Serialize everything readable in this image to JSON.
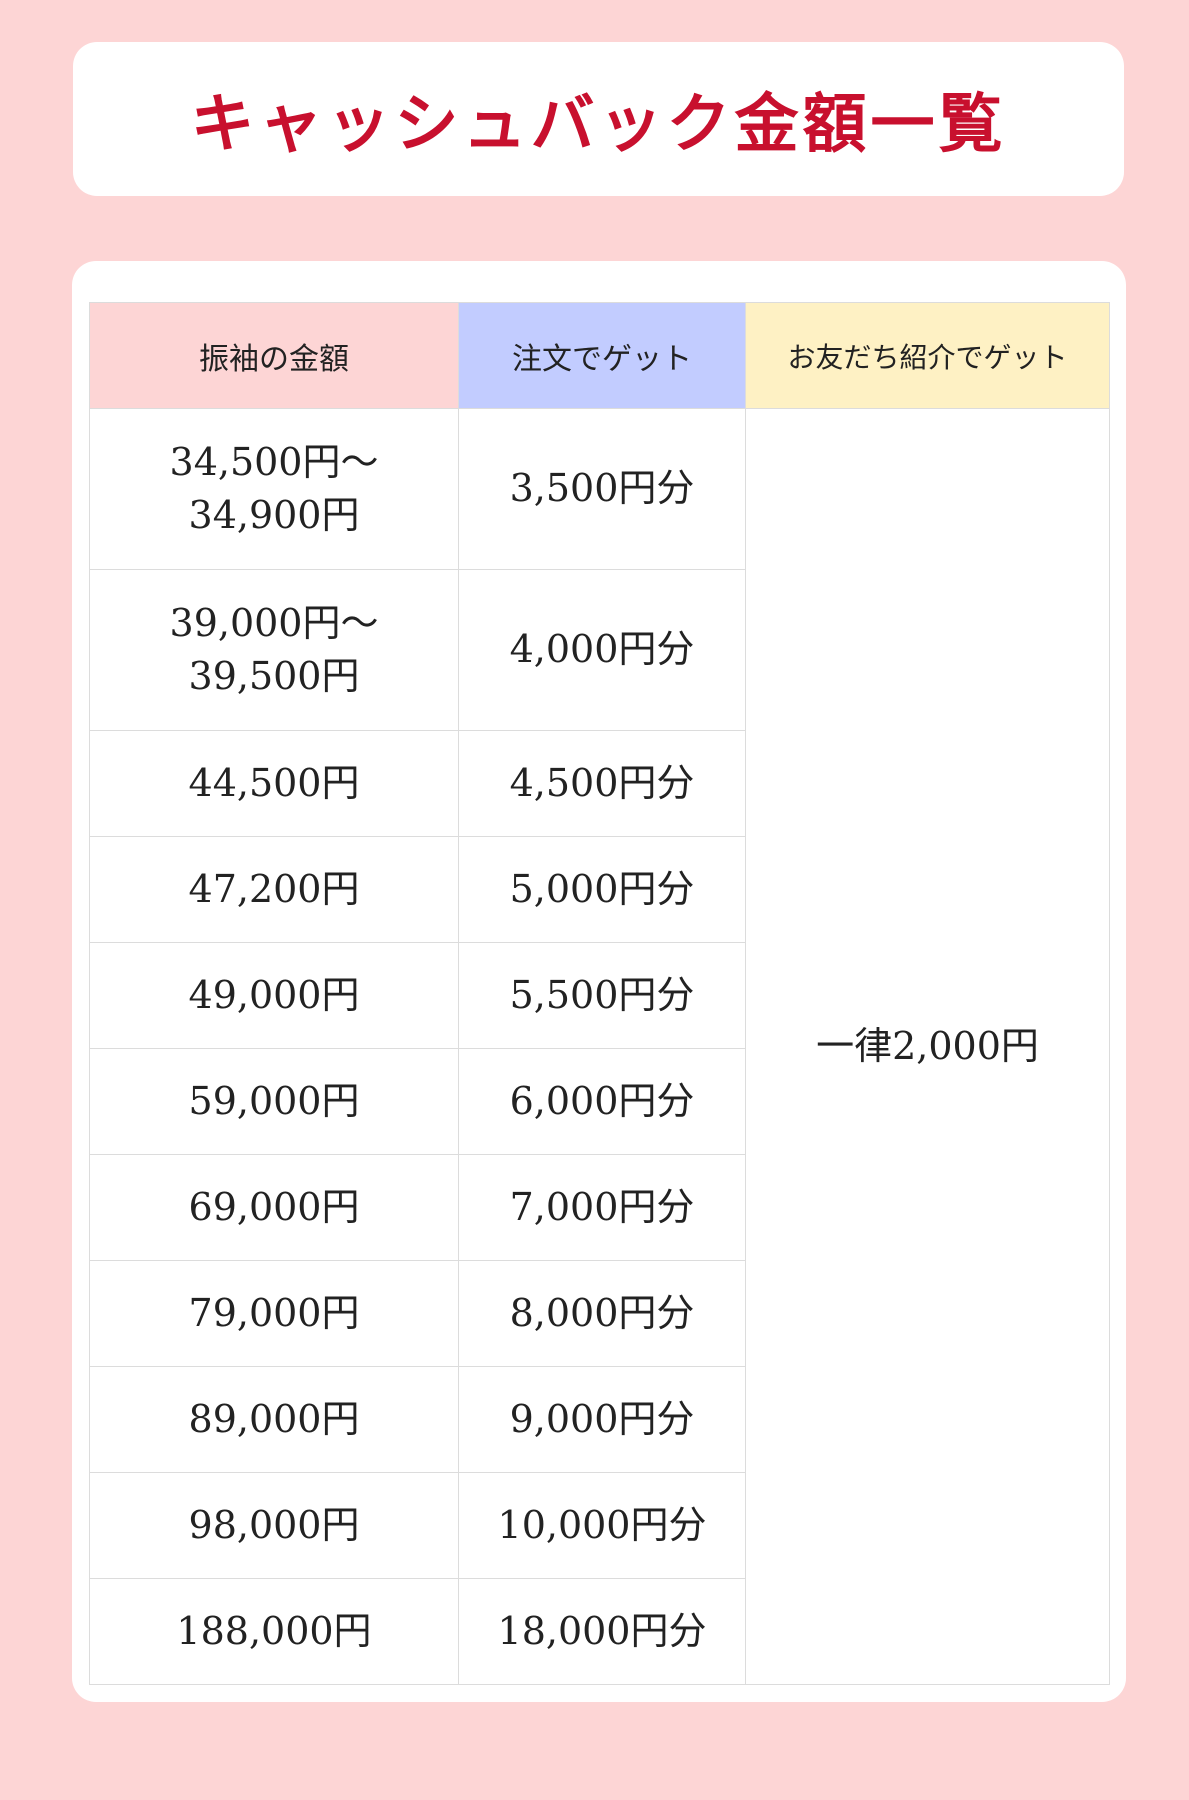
{
  "title": "キャッシュバック金額一覧",
  "table": {
    "headers": [
      "振袖の金額",
      "注文でゲット",
      "お友だち紹介でゲット"
    ],
    "header_colors": [
      "#fdd5d5",
      "#c2ccff",
      "#fef1c4"
    ],
    "rows": [
      {
        "price_line1": "34,500円～",
        "price_line2": "34,900円",
        "cashback": "3,500円分"
      },
      {
        "price_line1": "39,000円～",
        "price_line2": "39,500円",
        "cashback": "4,000円分"
      },
      {
        "price": "44,500円",
        "cashback": "4,500円分"
      },
      {
        "price": "47,200円",
        "cashback": "5,000円分"
      },
      {
        "price": "49,000円",
        "cashback": "5,500円分"
      },
      {
        "price": "59,000円",
        "cashback": "6,000円分"
      },
      {
        "price": "69,000円",
        "cashback": "7,000円分"
      },
      {
        "price": "79,000円",
        "cashback": "8,000円分"
      },
      {
        "price": "89,000円",
        "cashback": "9,000円分"
      },
      {
        "price": "98,000円",
        "cashback": "10,000円分"
      },
      {
        "price": "188,000円",
        "cashback": "18,000円分"
      }
    ],
    "referral": "一律2,000円"
  },
  "colors": {
    "background": "#fdd5d5",
    "title": "#c8102e"
  }
}
